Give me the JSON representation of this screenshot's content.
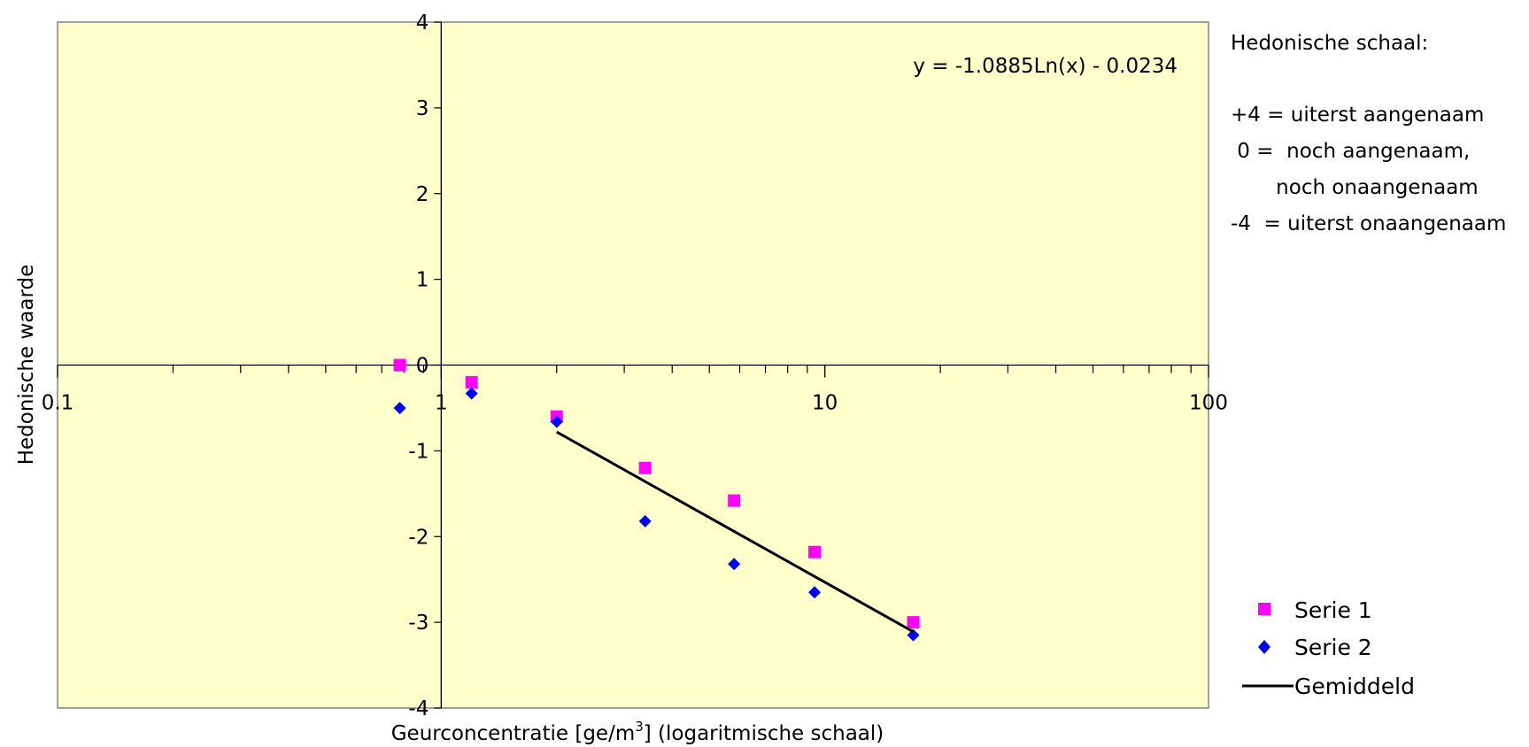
{
  "chart_data": {
    "type": "scatter",
    "x_scale": "log",
    "xlim": [
      0.1,
      100
    ],
    "ylim": [
      -4,
      4
    ],
    "x_ticks": [
      "0.1",
      "1",
      "10",
      "100"
    ],
    "y_ticks": [
      "4",
      "3",
      "2",
      "1",
      "0",
      "-1",
      "-2",
      "-3",
      "-4"
    ],
    "xlabel_pre": "Geurconcentratie  [ge/m",
    "xlabel_sup": "3",
    "xlabel_post": "] (logaritmische schaal)",
    "ylabel": "Hedonische waarde",
    "plot_background": "#ffffcc",
    "series": [
      {
        "name": "Serie 1",
        "marker": "square",
        "color": "#ff00ff",
        "x": [
          0.78,
          1.2,
          2.0,
          3.4,
          5.8,
          9.4,
          17
        ],
        "y": [
          0.0,
          -0.2,
          -0.6,
          -1.2,
          -1.58,
          -2.18,
          -3.0
        ]
      },
      {
        "name": "Serie 2",
        "marker": "diamond",
        "color": "#0000ff",
        "x": [
          0.78,
          1.2,
          2.0,
          3.4,
          5.8,
          9.4,
          17
        ],
        "y": [
          -0.5,
          -0.33,
          -0.66,
          -1.82,
          -2.32,
          -2.65,
          -3.15
        ]
      },
      {
        "name": "Gemiddeld",
        "type": "line",
        "color": "#000000",
        "x": [
          2.0,
          17
        ],
        "y": [
          -0.78,
          -3.11
        ]
      }
    ],
    "annotation": "y = -1.0885Ln(x) - 0.0234",
    "legend_position": "bottom-right"
  },
  "scale_note": {
    "title": "Hedonische schaal:",
    "lines": [
      "+4 = uiterst aangenaam",
      " 0 =  noch aangenaam,",
      "       noch onaangenaam",
      "-4  = uiterst onaangenaam"
    ]
  }
}
